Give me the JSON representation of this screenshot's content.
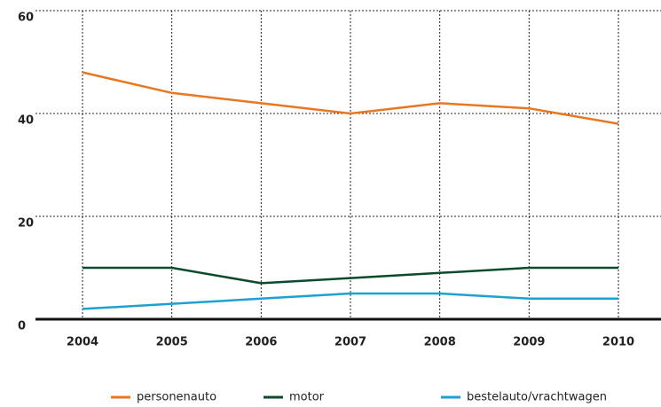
{
  "chart_data": {
    "type": "line",
    "categories": [
      "2004",
      "2005",
      "2006",
      "2007",
      "2008",
      "2009",
      "2010"
    ],
    "series": [
      {
        "name": "personenauto",
        "color": "#e87722",
        "values": [
          48,
          44,
          42,
          40,
          42,
          41,
          38
        ]
      },
      {
        "name": "motor",
        "color": "#0b4a2b",
        "values": [
          10,
          10,
          7,
          8,
          9,
          10,
          10
        ]
      },
      {
        "name": "bestelauto/vrachtwagen",
        "color": "#1ba1d4",
        "values": [
          2,
          3,
          4,
          5,
          5,
          4,
          4
        ]
      }
    ],
    "ylim": [
      0,
      60
    ],
    "yticks": [
      0,
      20,
      40,
      60
    ],
    "grid": true,
    "legend": "bottom"
  }
}
